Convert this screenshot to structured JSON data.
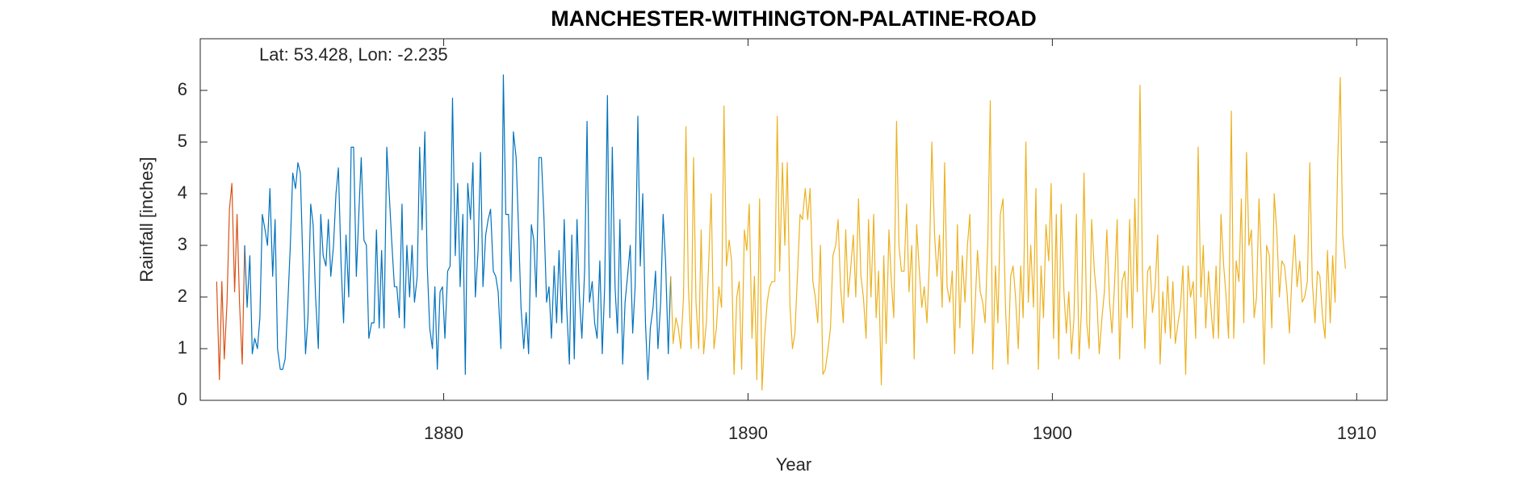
{
  "chart_data": {
    "type": "line",
    "title": "MANCHESTER-WITHINGTON-PALATINE-ROAD",
    "annotation": "Lat: 53.428, Lon: -2.235",
    "xlabel": "Year",
    "ylabel": "Rainfall [inches]",
    "xlim": [
      1872,
      1911
    ],
    "xticks": [
      1880,
      1890,
      1900,
      1910
    ],
    "ylim": [
      0,
      7
    ],
    "yticks": [
      0,
      1,
      2,
      3,
      4,
      5,
      6
    ],
    "grid": false,
    "series": [
      {
        "color": "#d95319",
        "x": [
          1872.54,
          1872.63,
          1872.71,
          1872.79,
          1872.88,
          1872.96,
          1873.04,
          1873.13,
          1873.21,
          1873.29,
          1873.38,
          1873.46
        ],
        "values": [
          2.3,
          0.4,
          2.3,
          0.8,
          1.9,
          3.7,
          4.2,
          2.1,
          3.6,
          1.9,
          0.7,
          3.0
        ]
      },
      {
        "color": "#0072bd",
        "x": [
          1873.46,
          1873.54,
          1873.63,
          1873.71,
          1873.79,
          1873.88,
          1873.96,
          1874.04,
          1874.13,
          1874.21,
          1874.29,
          1874.38,
          1874.46,
          1874.54,
          1874.63,
          1874.71,
          1874.79,
          1874.88,
          1874.96,
          1875.04,
          1875.13,
          1875.21,
          1875.29,
          1875.38,
          1875.46,
          1875.54,
          1875.63,
          1875.71,
          1875.79,
          1875.88,
          1875.96,
          1876.04,
          1876.13,
          1876.21,
          1876.29,
          1876.38,
          1876.46,
          1876.54,
          1876.63,
          1876.71,
          1876.79,
          1876.88,
          1876.96,
          1877.04,
          1877.13,
          1877.21,
          1877.29,
          1877.38,
          1877.46,
          1877.54,
          1877.63,
          1877.71,
          1877.79,
          1877.88,
          1877.96,
          1878.04,
          1878.13,
          1878.21,
          1878.29,
          1878.38,
          1878.46,
          1878.54,
          1878.63,
          1878.71,
          1878.79,
          1878.88,
          1878.96,
          1879.04,
          1879.13,
          1879.21,
          1879.29,
          1879.38,
          1879.46,
          1879.54,
          1879.63,
          1879.71,
          1879.79,
          1879.88,
          1879.96,
          1880.04,
          1880.13,
          1880.21,
          1880.29,
          1880.38,
          1880.46,
          1880.54,
          1880.63,
          1880.71,
          1880.79,
          1880.88,
          1880.96,
          1881.04,
          1881.13,
          1881.21,
          1881.29,
          1881.38,
          1881.46,
          1881.54,
          1881.63,
          1881.71,
          1881.79,
          1881.88,
          1881.96,
          1882.04,
          1882.13,
          1882.21,
          1882.29,
          1882.38,
          1882.46,
          1882.54,
          1882.63,
          1882.71,
          1882.79,
          1882.88,
          1882.96,
          1883.04,
          1883.13,
          1883.21,
          1883.29,
          1883.38,
          1883.46,
          1883.54,
          1883.63,
          1883.71,
          1883.79,
          1883.88,
          1883.96,
          1884.04,
          1884.13,
          1884.21,
          1884.29,
          1884.38,
          1884.46,
          1884.54,
          1884.63,
          1884.71,
          1884.79,
          1884.88,
          1884.96,
          1885.04,
          1885.13,
          1885.21,
          1885.29,
          1885.38,
          1885.46,
          1885.54,
          1885.63,
          1885.71,
          1885.79,
          1885.88,
          1885.96,
          1886.04,
          1886.13,
          1886.21,
          1886.29,
          1886.38,
          1886.46,
          1886.54,
          1886.63,
          1886.71,
          1886.79,
          1886.88,
          1886.96,
          1887.04,
          1887.13,
          1887.21,
          1887.29,
          1887.38,
          1887.46
        ],
        "values": [
          3.0,
          1.8,
          2.8,
          0.9,
          1.2,
          1.0,
          1.6,
          3.6,
          3.3,
          3.0,
          4.1,
          2.4,
          3.5,
          1.0,
          0.6,
          0.6,
          0.8,
          1.9,
          3.0,
          4.4,
          4.1,
          4.6,
          4.4,
          2.5,
          0.9,
          1.6,
          3.8,
          3.4,
          2.0,
          1.0,
          3.6,
          2.8,
          2.6,
          3.5,
          2.4,
          3.0,
          4.0,
          4.5,
          2.6,
          1.5,
          3.2,
          2.0,
          4.9,
          4.9,
          2.4,
          3.6,
          4.7,
          3.1,
          3.0,
          1.2,
          1.5,
          1.5,
          3.3,
          1.4,
          2.9,
          1.4,
          4.9,
          4.0,
          3.1,
          2.2,
          2.2,
          1.6,
          3.8,
          1.4,
          3.0,
          2.0,
          3.0,
          1.9,
          2.4,
          4.9,
          3.3,
          5.2,
          2.6,
          1.4,
          1.0,
          2.2,
          0.6,
          2.1,
          2.2,
          1.2,
          2.5,
          2.6,
          5.85,
          2.8,
          4.2,
          2.2,
          3.6,
          0.5,
          4.2,
          3.5,
          4.6,
          2.0,
          2.9,
          4.8,
          2.2,
          3.2,
          3.5,
          3.7,
          2.5,
          2.4,
          2.1,
          1.0,
          6.3,
          3.6,
          3.6,
          2.3,
          5.2,
          4.7,
          3.3,
          1.8,
          1.0,
          1.7,
          0.9,
          3.4,
          3.1,
          2.0,
          4.7,
          4.7,
          3.6,
          1.9,
          2.2,
          1.2,
          2.6,
          1.5,
          2.9,
          1.5,
          3.5,
          1.8,
          0.7,
          3.2,
          0.8,
          3.5,
          2.0,
          1.2,
          2.5,
          5.4,
          1.9,
          2.3,
          1.5,
          1.2,
          2.7,
          0.9,
          2.2,
          5.9,
          1.6,
          4.9,
          2.2,
          1.3,
          3.5,
          0.7,
          1.9,
          2.4,
          3.0,
          1.3,
          2.2,
          5.5,
          2.6,
          4.0,
          1.5,
          0.4,
          1.4,
          1.8,
          2.5,
          1.0,
          1.9,
          3.6,
          2.7,
          0.9,
          2.4
        ]
      },
      {
        "color": "#edb120",
        "x": [
          1887.46,
          1887.54,
          1887.63,
          1887.71,
          1887.79,
          1887.88,
          1887.96,
          1888.04,
          1888.13,
          1888.21,
          1888.29,
          1888.38,
          1888.46,
          1888.54,
          1888.63,
          1888.71,
          1888.79,
          1888.88,
          1888.96,
          1889.04,
          1889.13,
          1889.21,
          1889.29,
          1889.38,
          1889.46,
          1889.54,
          1889.63,
          1889.71,
          1889.79,
          1889.88,
          1889.96,
          1890.04,
          1890.13,
          1890.21,
          1890.29,
          1890.38,
          1890.46,
          1890.54,
          1890.63,
          1890.71,
          1890.79,
          1890.88,
          1890.96,
          1891.04,
          1891.13,
          1891.21,
          1891.29,
          1891.38,
          1891.46,
          1891.54,
          1891.63,
          1891.71,
          1891.79,
          1891.88,
          1891.96,
          1892.04,
          1892.13,
          1892.21,
          1892.29,
          1892.38,
          1892.46,
          1892.54,
          1892.63,
          1892.71,
          1892.79,
          1892.88,
          1892.96,
          1893.04,
          1893.13,
          1893.21,
          1893.29,
          1893.38,
          1893.46,
          1893.54,
          1893.63,
          1893.71,
          1893.79,
          1893.88,
          1893.96,
          1894.04,
          1894.13,
          1894.21,
          1894.29,
          1894.38,
          1894.46,
          1894.54,
          1894.63,
          1894.71,
          1894.79,
          1894.88,
          1894.96,
          1895.04,
          1895.13,
          1895.21,
          1895.29,
          1895.38,
          1895.46,
          1895.54,
          1895.63,
          1895.71,
          1895.79,
          1895.88,
          1895.96,
          1896.04,
          1896.13,
          1896.21,
          1896.29,
          1896.38,
          1896.46,
          1896.54,
          1896.63,
          1896.71,
          1896.79,
          1896.88,
          1896.96,
          1897.04,
          1897.13,
          1897.21,
          1897.29,
          1897.38,
          1897.46,
          1897.54,
          1897.63,
          1897.71,
          1897.79,
          1897.88,
          1897.96,
          1898.04,
          1898.13,
          1898.21,
          1898.29,
          1898.38,
          1898.46,
          1898.54,
          1898.63,
          1898.71,
          1898.79,
          1898.88,
          1898.96,
          1899.04,
          1899.13,
          1899.21,
          1899.29,
          1899.38,
          1899.46,
          1899.54,
          1899.63,
          1899.71,
          1899.79,
          1899.88,
          1899.96,
          1900.04,
          1900.13,
          1900.21,
          1900.29,
          1900.38,
          1900.46,
          1900.54,
          1900.63,
          1900.71,
          1900.79,
          1900.88,
          1900.96,
          1901.04,
          1901.13,
          1901.21,
          1901.29,
          1901.38,
          1901.46,
          1901.54,
          1901.63,
          1901.71,
          1901.79,
          1901.88,
          1901.96,
          1902.04,
          1902.13,
          1902.21,
          1902.29,
          1902.38,
          1902.46,
          1902.54,
          1902.63,
          1902.71,
          1902.79,
          1902.88,
          1902.96,
          1903.04,
          1903.13,
          1903.21,
          1903.29,
          1903.38,
          1903.46,
          1903.54,
          1903.63,
          1903.71,
          1903.79,
          1903.88,
          1903.96,
          1904.04,
          1904.13,
          1904.21,
          1904.29,
          1904.38,
          1904.46,
          1904.54,
          1904.63,
          1904.71,
          1904.79,
          1904.88,
          1904.96,
          1905.04,
          1905.13,
          1905.21,
          1905.29,
          1905.38,
          1905.46,
          1905.54,
          1905.63,
          1905.71,
          1905.79,
          1905.88,
          1905.96,
          1906.04,
          1906.13,
          1906.21,
          1906.29,
          1906.38,
          1906.46,
          1906.54,
          1906.63,
          1906.71,
          1906.79,
          1906.88,
          1906.96,
          1907.04,
          1907.13,
          1907.21,
          1907.29,
          1907.38,
          1907.46,
          1907.54,
          1907.63,
          1907.71,
          1907.79,
          1907.88,
          1907.96,
          1908.04,
          1908.13,
          1908.21,
          1908.29,
          1908.38,
          1908.46,
          1908.54,
          1908.63,
          1908.71,
          1908.79,
          1908.88,
          1908.96,
          1909.04,
          1909.13,
          1909.21,
          1909.29,
          1909.38,
          1909.46,
          1909.54,
          1909.63
        ],
        "values": [
          2.4,
          1.1,
          1.6,
          1.4,
          1.0,
          2.0,
          5.3,
          2.2,
          1.0,
          4.7,
          1.9,
          1.0,
          3.3,
          0.9,
          1.5,
          2.7,
          4.0,
          1.0,
          1.4,
          2.2,
          1.8,
          5.7,
          2.6,
          3.1,
          2.7,
          0.5,
          2.0,
          2.3,
          0.6,
          3.3,
          2.9,
          3.8,
          1.2,
          2.4,
          0.4,
          3.9,
          0.2,
          1.2,
          1.9,
          2.2,
          2.3,
          2.3,
          5.5,
          2.5,
          4.6,
          3.0,
          4.6,
          1.8,
          1.0,
          1.3,
          2.5,
          3.6,
          3.5,
          4.1,
          3.5,
          4.1,
          2.3,
          2.0,
          1.5,
          3.0,
          0.5,
          0.6,
          1.0,
          1.4,
          2.8,
          3.0,
          3.5,
          2.2,
          1.5,
          3.3,
          2.0,
          2.6,
          3.2,
          2.0,
          3.9,
          2.4,
          2.0,
          1.2,
          3.5,
          2.0,
          3.6,
          1.6,
          2.5,
          0.3,
          2.8,
          1.1,
          3.3,
          2.3,
          1.6,
          5.4,
          3.0,
          2.5,
          2.5,
          3.8,
          2.1,
          3.0,
          0.8,
          3.4,
          2.5,
          1.8,
          2.2,
          1.5,
          2.7,
          5.0,
          3.2,
          2.4,
          3.2,
          1.8,
          4.6,
          2.2,
          1.9,
          2.5,
          0.9,
          3.4,
          1.4,
          2.8,
          1.9,
          3.0,
          3.6,
          0.9,
          1.8,
          2.9,
          2.1,
          1.9,
          1.5,
          3.1,
          5.8,
          0.6,
          2.6,
          1.5,
          3.6,
          3.9,
          1.8,
          0.7,
          2.4,
          2.6,
          2.0,
          1.0,
          2.6,
          1.6,
          5.0,
          1.9,
          3.0,
          1.8,
          4.1,
          0.6,
          2.6,
          1.6,
          3.4,
          2.7,
          4.2,
          1.2,
          3.6,
          0.8,
          3.8,
          2.1,
          1.3,
          2.1,
          0.9,
          1.6,
          3.6,
          0.8,
          1.8,
          4.4,
          1.5,
          1.0,
          3.5,
          2.5,
          2.0,
          0.9,
          1.6,
          2.1,
          3.3,
          1.9,
          1.3,
          2.2,
          3.5,
          0.8,
          2.3,
          2.5,
          1.6,
          3.5,
          1.4,
          3.9,
          2.1,
          6.1,
          2.5,
          1.0,
          2.5,
          2.6,
          1.7,
          2.2,
          3.2,
          0.7,
          2.1,
          1.3,
          2.4,
          1.2,
          2.3,
          1.1,
          1.5,
          1.8,
          2.6,
          0.5,
          2.6,
          2.0,
          2.3,
          1.2,
          4.9,
          2.0,
          3.0,
          1.4,
          2.5,
          1.8,
          1.2,
          2.6,
          1.2,
          3.6,
          2.6,
          2.0,
          1.2,
          5.6,
          1.2,
          2.7,
          2.3,
          3.9,
          1.5,
          4.8,
          3.0,
          3.3,
          1.6,
          2.0,
          3.9,
          2.4,
          0.7,
          3.0,
          2.8,
          1.4,
          4.0,
          3.2,
          2.0,
          2.7,
          2.6,
          2.1,
          1.3,
          2.5,
          3.2,
          2.2,
          2.7,
          1.9,
          2.0,
          2.3,
          4.6,
          2.3,
          1.5,
          2.5,
          2.4,
          1.6,
          1.2,
          2.9,
          1.5,
          2.8,
          1.9,
          4.7,
          6.25,
          3.2,
          2.55
        ]
      }
    ]
  }
}
